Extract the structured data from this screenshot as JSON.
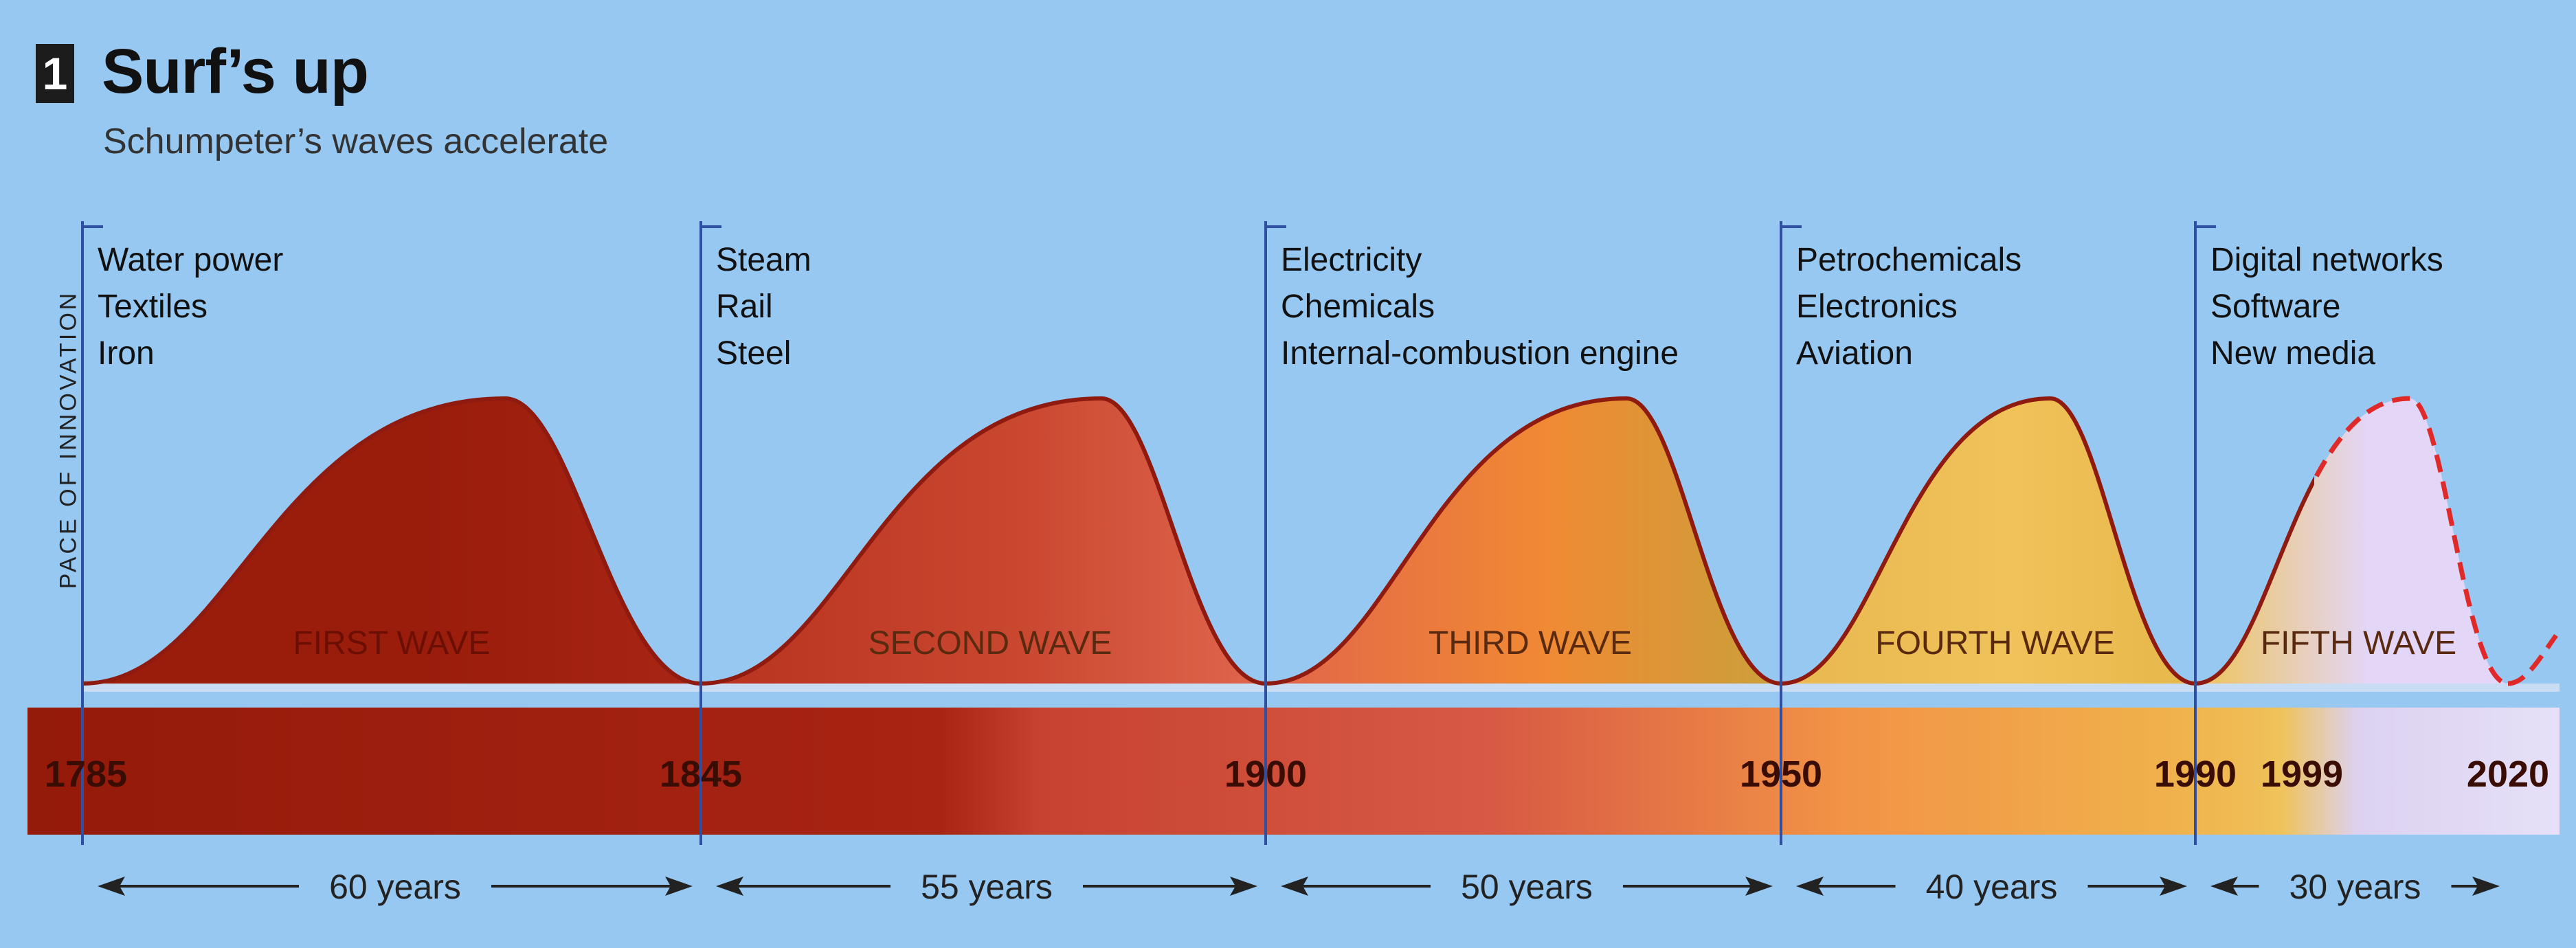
{
  "header": {
    "number": "1",
    "title": "Surf’s up",
    "subtitle": "Schumpeter’s waves accelerate"
  },
  "chart_data": {
    "type": "area",
    "title": "Surf’s up",
    "subtitle": "Schumpeter’s waves accelerate",
    "ylabel": "PACE OF INNOVATION",
    "x_ticks": [
      1785,
      1845,
      1900,
      1950,
      1990,
      1999,
      2020
    ],
    "x_range": [
      1785,
      2030
    ],
    "waves": [
      {
        "name": "FIRST WAVE",
        "start": 1785,
        "end": 1845,
        "peak_year": 1826,
        "duration": "60 years",
        "innovations": [
          "Water power",
          "Textiles",
          "Iron"
        ],
        "color": "#9a1c0b"
      },
      {
        "name": "SECOND WAVE",
        "start": 1845,
        "end": 1900,
        "peak_year": 1884,
        "duration": "55 years",
        "innovations": [
          "Steam",
          "Rail",
          "Steel"
        ],
        "color": "#d4543e"
      },
      {
        "name": "THIRD WAVE",
        "start": 1900,
        "end": 1950,
        "peak_year": 1935,
        "duration": "50 years",
        "innovations": [
          "Electricity",
          "Chemicals",
          "Internal-combustion engine"
        ],
        "color": "#f08a34"
      },
      {
        "name": "FOURTH WAVE",
        "start": 1950,
        "end": 1990,
        "peak_year": 1976,
        "duration": "40 years",
        "innovations": [
          "Petrochemicals",
          "Electronics",
          "Aviation"
        ],
        "color": "#eebd4f"
      },
      {
        "name": "FIFTH WAVE",
        "start": 1990,
        "end": 2020,
        "peak_year": 2010,
        "duration": "30 years",
        "innovations": [
          "Digital networks",
          "Software",
          "New media"
        ],
        "color": "#e3d6f6",
        "projected_from": 1999
      }
    ]
  }
}
